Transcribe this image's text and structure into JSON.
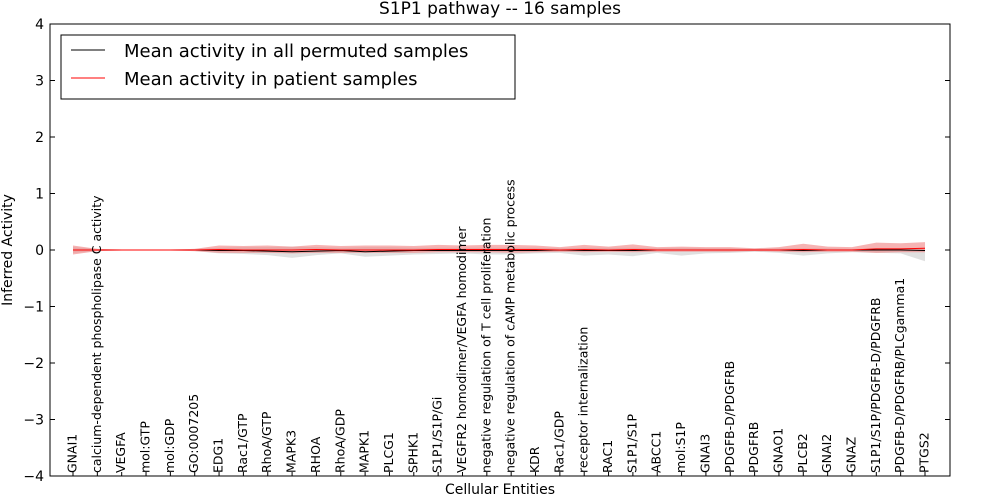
{
  "chart_data": {
    "type": "line",
    "title": "S1P1 pathway -- 16 samples",
    "xlabel": "Cellular Entities",
    "ylabel": "Inferred Activity",
    "ylim": [
      -4,
      4
    ],
    "yticks": [
      -4,
      -3,
      -2,
      -1,
      0,
      1,
      2,
      3,
      4
    ],
    "ytick_labels": [
      "−4",
      "−3",
      "−2",
      "−1",
      "0",
      "1",
      "2",
      "3",
      "4"
    ],
    "grid": false,
    "legend_position": "top-left",
    "categories": [
      "GNAI1",
      "calcium-dependent phospholipase C activity",
      "VEGFA",
      "mol:GTP",
      "mol:GDP",
      "GO:0007205",
      "EDG1",
      "Rac1/GTP",
      "RhoA/GTP",
      "MAPK3",
      "RHOA",
      "RhoA/GDP",
      "MAPK1",
      "PLCG1",
      "SPHK1",
      "S1P1/S1P/Gi",
      "VEGFR2 homodimer/VEGFA homodimer",
      "negative regulation of T cell proliferation",
      "negative regulation of cAMP metabolic process",
      "KDR",
      "Rac1/GDP",
      "receptor internalization",
      "RAC1",
      "S1P1/S1P",
      "ABCC1",
      "mol:S1P",
      "GNAI3",
      "PDGFB-D/PDGFRB",
      "PDGFRB",
      "GNAO1",
      "PLCB2",
      "GNAI2",
      "GNAZ",
      "S1P1/S1P/PDGFB-D/PDGFRB",
      "PDGFB-D/PDGFRB/PLCgamma1",
      "PTGS2"
    ],
    "series": [
      {
        "name": "Mean activity in all permuted samples",
        "color": "#000000",
        "band_color": "#bbbbbb",
        "values": [
          0.0,
          0.0,
          0.0,
          0.0,
          0.0,
          0.0,
          -0.01,
          -0.01,
          -0.02,
          -0.03,
          -0.02,
          -0.01,
          -0.03,
          -0.02,
          -0.01,
          -0.01,
          -0.01,
          -0.01,
          -0.01,
          -0.01,
          0.0,
          -0.01,
          -0.01,
          -0.01,
          0.0,
          0.0,
          0.0,
          0.0,
          0.0,
          0.0,
          -0.01,
          0.0,
          0.0,
          0.0,
          0.0,
          -0.01
        ],
        "lower": [
          -0.05,
          -0.02,
          -0.01,
          -0.01,
          -0.01,
          -0.02,
          -0.06,
          -0.07,
          -0.09,
          -0.14,
          -0.09,
          -0.06,
          -0.12,
          -0.1,
          -0.08,
          -0.07,
          -0.06,
          -0.08,
          -0.08,
          -0.06,
          -0.05,
          -0.1,
          -0.08,
          -0.11,
          -0.05,
          -0.1,
          -0.06,
          -0.05,
          -0.03,
          -0.05,
          -0.1,
          -0.06,
          -0.04,
          -0.05,
          -0.06,
          -0.2
        ],
        "upper": [
          0.05,
          0.02,
          0.01,
          0.01,
          0.01,
          0.02,
          0.04,
          0.05,
          0.05,
          0.06,
          0.05,
          0.04,
          0.05,
          0.05,
          0.04,
          0.04,
          0.04,
          0.04,
          0.04,
          0.04,
          0.03,
          0.04,
          0.04,
          0.04,
          0.03,
          0.04,
          0.03,
          0.03,
          0.02,
          0.03,
          0.03,
          0.03,
          0.02,
          0.03,
          0.03,
          0.04
        ]
      },
      {
        "name": "Mean activity in patient samples",
        "color": "#ff0000",
        "band_color": "#f08080",
        "values": [
          0.0,
          0.0,
          0.0,
          0.0,
          0.0,
          0.0,
          0.01,
          0.0,
          0.0,
          0.0,
          0.01,
          0.0,
          0.0,
          0.0,
          0.0,
          0.01,
          0.01,
          0.01,
          0.01,
          0.01,
          0.0,
          0.01,
          0.0,
          0.01,
          0.0,
          0.0,
          0.0,
          0.0,
          0.0,
          0.0,
          0.01,
          0.0,
          0.0,
          0.02,
          0.02,
          0.03
        ],
        "lower": [
          -0.08,
          -0.02,
          -0.01,
          -0.01,
          -0.01,
          -0.02,
          -0.05,
          -0.05,
          -0.05,
          -0.06,
          -0.05,
          -0.05,
          -0.05,
          -0.05,
          -0.05,
          -0.04,
          -0.04,
          -0.04,
          -0.05,
          -0.04,
          -0.03,
          -0.04,
          -0.03,
          -0.04,
          -0.03,
          -0.03,
          -0.03,
          -0.03,
          -0.02,
          -0.03,
          -0.04,
          -0.03,
          -0.03,
          -0.05,
          -0.04,
          -0.04
        ],
        "upper": [
          0.08,
          0.02,
          0.01,
          0.01,
          0.01,
          0.02,
          0.08,
          0.07,
          0.08,
          0.06,
          0.09,
          0.07,
          0.08,
          0.08,
          0.07,
          0.09,
          0.08,
          0.09,
          0.09,
          0.08,
          0.05,
          0.09,
          0.06,
          0.1,
          0.05,
          0.06,
          0.05,
          0.05,
          0.03,
          0.05,
          0.11,
          0.06,
          0.05,
          0.13,
          0.12,
          0.14
        ]
      }
    ]
  }
}
